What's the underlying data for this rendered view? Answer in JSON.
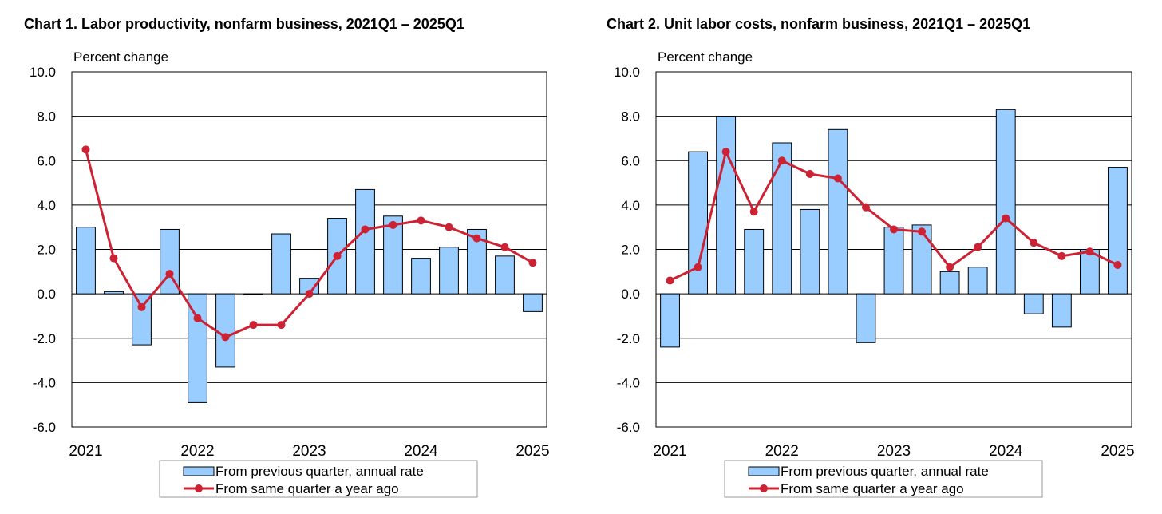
{
  "chart_data": [
    {
      "type": "bar+line",
      "title": "Chart  1. Labor productivity, nonfarm business, 2021Q1 – 2025Q1",
      "ylabel": "Percent change",
      "ylim": [
        -6,
        10
      ],
      "yticks": [
        "-6.0",
        "-4.0",
        "-2.0",
        "0.0",
        "2.0",
        "4.0",
        "6.0",
        "8.0",
        "10.0"
      ],
      "xticks": [
        "2021",
        "2022",
        "2023",
        "2024",
        "2025"
      ],
      "categories": [
        "2021Q1",
        "2021Q2",
        "2021Q3",
        "2021Q4",
        "2022Q1",
        "2022Q2",
        "2022Q3",
        "2022Q4",
        "2023Q1",
        "2023Q2",
        "2023Q3",
        "2023Q4",
        "2024Q1",
        "2024Q2",
        "2024Q3",
        "2024Q4",
        "2025Q1"
      ],
      "grid": true,
      "legend_position": "bottom",
      "series": [
        {
          "name": "From previous quarter, annual rate",
          "kind": "bar",
          "color": "#99ccff",
          "values": [
            3.0,
            0.1,
            -2.3,
            2.9,
            -4.9,
            -3.3,
            0.0,
            2.7,
            0.7,
            3.4,
            4.7,
            3.5,
            1.6,
            2.1,
            2.9,
            1.7,
            -0.8
          ]
        },
        {
          "name": "From same quarter a year ago",
          "kind": "line",
          "color": "#cc2233",
          "values": [
            6.5,
            1.6,
            -0.6,
            0.9,
            -1.1,
            -1.95,
            -1.4,
            -1.4,
            0.0,
            1.7,
            2.9,
            3.1,
            3.3,
            3.0,
            2.5,
            2.1,
            1.4
          ]
        }
      ]
    },
    {
      "type": "bar+line",
      "title": "Chart  2. Unit labor costs, nonfarm business, 2021Q1 – 2025Q1",
      "ylabel": "Percent change",
      "ylim": [
        -6,
        10
      ],
      "yticks": [
        "-6.0",
        "-4.0",
        "-2.0",
        "0.0",
        "2.0",
        "4.0",
        "6.0",
        "8.0",
        "10.0"
      ],
      "xticks": [
        "2021",
        "2022",
        "2023",
        "2024",
        "2025"
      ],
      "categories": [
        "2021Q1",
        "2021Q2",
        "2021Q3",
        "2021Q4",
        "2022Q1",
        "2022Q2",
        "2022Q3",
        "2022Q4",
        "2023Q1",
        "2023Q2",
        "2023Q3",
        "2023Q4",
        "2024Q1",
        "2024Q2",
        "2024Q3",
        "2024Q4",
        "2025Q1"
      ],
      "grid": true,
      "legend_position": "bottom",
      "series": [
        {
          "name": "From previous quarter, annual rate",
          "kind": "bar",
          "color": "#99ccff",
          "values": [
            -2.4,
            6.4,
            8.0,
            2.9,
            6.8,
            3.8,
            7.4,
            -2.2,
            3.0,
            3.1,
            1.0,
            1.2,
            8.3,
            -0.9,
            -1.5,
            2.0,
            5.7
          ]
        },
        {
          "name": "From same quarter a year ago",
          "kind": "line",
          "color": "#cc2233",
          "values": [
            0.6,
            1.2,
            6.4,
            3.7,
            6.0,
            5.4,
            5.2,
            3.9,
            2.9,
            2.8,
            1.2,
            2.1,
            3.4,
            2.3,
            1.7,
            1.9,
            1.3
          ]
        }
      ]
    }
  ]
}
